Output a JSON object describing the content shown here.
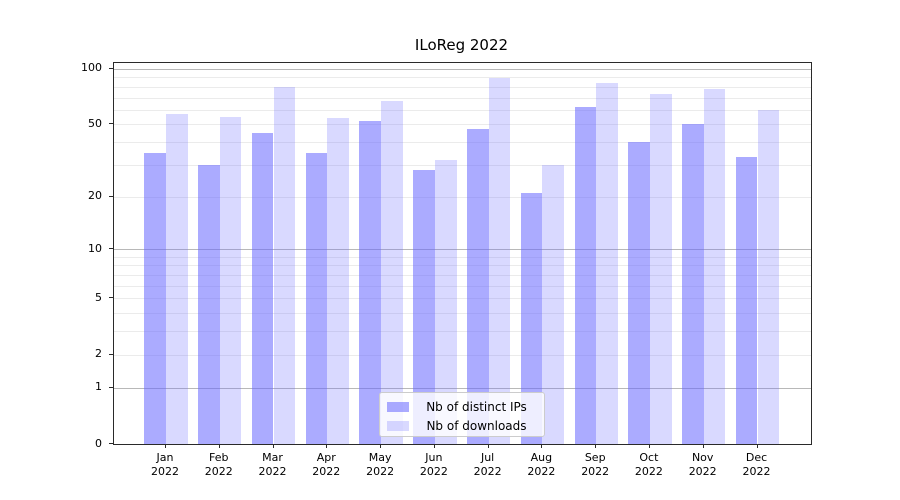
{
  "chart_data": {
    "type": "bar",
    "title": "ILoReg 2022",
    "categories": [
      "Jan 2022",
      "Feb 2022",
      "Mar 2022",
      "Apr 2022",
      "May 2022",
      "Jun 2022",
      "Jul 2022",
      "Aug 2022",
      "Sep 2022",
      "Oct 2022",
      "Nov 2022",
      "Dec 2022"
    ],
    "series": [
      {
        "name": "Nb of distinct IPs",
        "color": "rgba(102,102,255,0.55)",
        "values": [
          35,
          30,
          45,
          35,
          52,
          28,
          47,
          21,
          62,
          40,
          50,
          33
        ]
      },
      {
        "name": "Nb of downloads",
        "color": "rgba(102,102,255,0.25)",
        "values": [
          57,
          55,
          80,
          54,
          67,
          32,
          89,
          30,
          84,
          73,
          78,
          60
        ]
      }
    ],
    "xlabel": "",
    "ylabel": "",
    "yscale": "log1p",
    "ylim": [
      0,
      107.5
    ],
    "yticks": [
      0,
      1,
      2,
      5,
      10,
      20,
      50,
      100
    ],
    "major_gridlines": [
      1,
      10,
      100
    ],
    "minor_gridlines": [
      2,
      3,
      4,
      5,
      6,
      7,
      8,
      9,
      20,
      30,
      40,
      50,
      60,
      70,
      80,
      90
    ],
    "grid": true,
    "legend_position": "lower center"
  }
}
